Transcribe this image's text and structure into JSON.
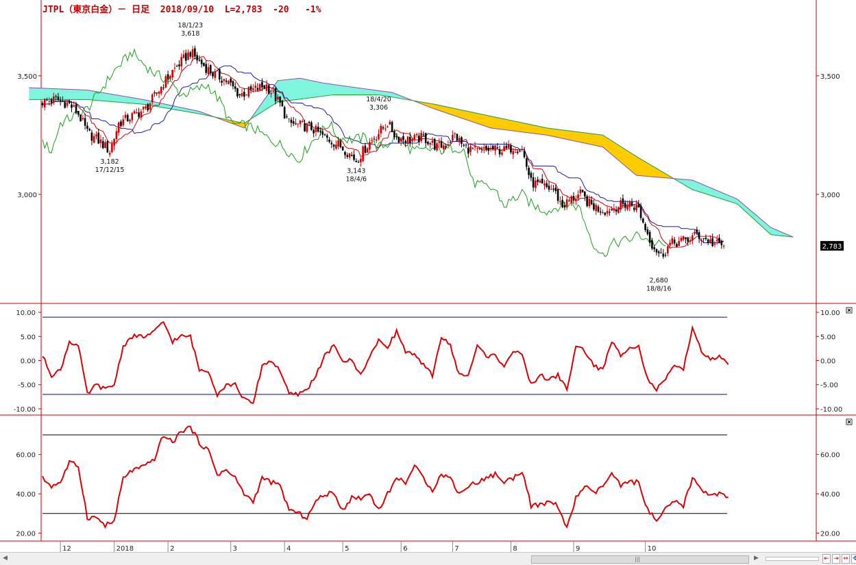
{
  "header": {
    "title": "JTPL（東京白金）－ 日足  2018/09/10  L=2,783  -20   -1%"
  },
  "colors": {
    "frame": "#c00000",
    "up_candle": "#d40000",
    "down_candle": "#000000",
    "tenkan": "#d40000",
    "kijun": "#1a1aa0",
    "chikou": "#18a018",
    "kumo_bull": "#7ff5dd",
    "kumo_bear": "#ffcc00",
    "osc_line": "#dd0000",
    "osc_band_upper": "#0000aa",
    "osc_band_lower": "#0000aa",
    "rsi_band": "#000000"
  },
  "chart_data": [
    {
      "type": "candlestick",
      "panel": "price",
      "ylim": [
        2540,
        3820
      ],
      "y_ticks": [
        "3,500",
        "3,000"
      ],
      "y_tick_values": [
        3500,
        3000
      ],
      "series_names": [
        "tenkan",
        "kijun",
        "senkou_a",
        "senkou_b",
        "chikou"
      ],
      "keypoints_close": [
        [
          0,
          3390
        ],
        [
          6,
          3400
        ],
        [
          12,
          3380
        ],
        [
          16,
          3340
        ],
        [
          20,
          3260
        ],
        [
          26,
          3220
        ],
        [
          30,
          3182
        ],
        [
          34,
          3300
        ],
        [
          40,
          3330
        ],
        [
          46,
          3360
        ],
        [
          52,
          3440
        ],
        [
          58,
          3520
        ],
        [
          62,
          3560
        ],
        [
          66,
          3600
        ],
        [
          70,
          3560
        ],
        [
          76,
          3510
        ],
        [
          82,
          3480
        ],
        [
          88,
          3420
        ],
        [
          94,
          3440
        ],
        [
          100,
          3460
        ],
        [
          106,
          3380
        ],
        [
          110,
          3300
        ],
        [
          116,
          3290
        ],
        [
          120,
          3280
        ],
        [
          126,
          3240
        ],
        [
          132,
          3210
        ],
        [
          136,
          3180
        ],
        [
          140,
          3143
        ],
        [
          146,
          3220
        ],
        [
          150,
          3260
        ],
        [
          154,
          3300
        ],
        [
          158,
          3240
        ],
        [
          164,
          3230
        ],
        [
          170,
          3240
        ],
        [
          176,
          3200
        ],
        [
          180,
          3210
        ],
        [
          184,
          3250
        ],
        [
          188,
          3200
        ],
        [
          194,
          3180
        ],
        [
          200,
          3190
        ],
        [
          206,
          3185
        ],
        [
          210,
          3200
        ],
        [
          214,
          3190
        ],
        [
          218,
          3050
        ],
        [
          224,
          3030
        ],
        [
          228,
          3020
        ],
        [
          232,
          2950
        ],
        [
          236,
          2980
        ],
        [
          240,
          3000
        ],
        [
          244,
          2960
        ],
        [
          248,
          2940
        ],
        [
          252,
          2930
        ],
        [
          256,
          2950
        ],
        [
          262,
          2960
        ],
        [
          266,
          2940
        ],
        [
          268,
          2880
        ],
        [
          272,
          2790
        ],
        [
          276,
          2740
        ],
        [
          280,
          2790
        ],
        [
          284,
          2800
        ],
        [
          288,
          2810
        ],
        [
          292,
          2830
        ],
        [
          296,
          2810
        ],
        [
          300,
          2790
        ],
        [
          304,
          2783
        ]
      ],
      "kumo_a_points": [
        [
          -6,
          3450
        ],
        [
          20,
          3440
        ],
        [
          45,
          3400
        ],
        [
          70,
          3350
        ],
        [
          90,
          3280
        ],
        [
          105,
          3480
        ],
        [
          115,
          3490
        ],
        [
          125,
          3470
        ],
        [
          140,
          3450
        ],
        [
          156,
          3430
        ],
        [
          175,
          3360
        ],
        [
          200,
          3280
        ],
        [
          225,
          3250
        ],
        [
          250,
          3200
        ],
        [
          265,
          3080
        ],
        [
          290,
          3060
        ],
        [
          310,
          2980
        ],
        [
          325,
          2860
        ],
        [
          335,
          2820
        ]
      ],
      "kumo_b_points": [
        [
          -6,
          3400
        ],
        [
          20,
          3400
        ],
        [
          45,
          3380
        ],
        [
          70,
          3340
        ],
        [
          90,
          3300
        ],
        [
          105,
          3390
        ],
        [
          130,
          3420
        ],
        [
          150,
          3420
        ],
        [
          175,
          3380
        ],
        [
          200,
          3330
        ],
        [
          225,
          3280
        ],
        [
          250,
          3250
        ],
        [
          265,
          3160
        ],
        [
          290,
          3020
        ],
        [
          310,
          2960
        ],
        [
          325,
          2830
        ],
        [
          335,
          2820
        ]
      ],
      "annotations": [
        {
          "label_top": "18/1/23",
          "label_bottom": "3,618",
          "x": 66,
          "y": 3618,
          "pos": "above"
        },
        {
          "label_top": "3,182",
          "label_bottom": "17/12/15",
          "x": 30,
          "y": 3182,
          "pos": "below"
        },
        {
          "label_top": "3,143",
          "label_bottom": "18/4/6",
          "x": 140,
          "y": 3143,
          "pos": "below"
        },
        {
          "label_top": "18/4/20",
          "label_bottom": "3,306",
          "x": 150,
          "y": 3306,
          "pos": "above"
        },
        {
          "label_top": "2,680",
          "label_bottom": "18/8/16",
          "x": 275,
          "y": 2680,
          "pos": "below"
        }
      ],
      "last_value_label": "2,783",
      "last_value": 2783
    },
    {
      "type": "line",
      "panel": "oscillator",
      "ylim": [
        -11,
        11
      ],
      "y_ticks": [
        "10.00",
        "5.00",
        "0.00",
        "-5.00",
        "-10.00"
      ],
      "y_tick_values": [
        10,
        5,
        0,
        -5,
        -10
      ],
      "upper_band": 9,
      "lower_band": -7,
      "keypoints": [
        [
          0,
          1
        ],
        [
          4,
          -3
        ],
        [
          8,
          -2
        ],
        [
          12,
          4
        ],
        [
          16,
          3
        ],
        [
          20,
          -7
        ],
        [
          24,
          -5
        ],
        [
          28,
          -6
        ],
        [
          32,
          -5
        ],
        [
          36,
          3
        ],
        [
          40,
          5
        ],
        [
          46,
          5
        ],
        [
          50,
          6
        ],
        [
          54,
          8
        ],
        [
          58,
          4
        ],
        [
          62,
          5
        ],
        [
          66,
          5
        ],
        [
          70,
          -2
        ],
        [
          74,
          -2
        ],
        [
          78,
          -7
        ],
        [
          82,
          -5
        ],
        [
          86,
          -5
        ],
        [
          90,
          -8
        ],
        [
          94,
          -9
        ],
        [
          98,
          -1
        ],
        [
          102,
          0
        ],
        [
          106,
          -2
        ],
        [
          110,
          -7
        ],
        [
          114,
          -7
        ],
        [
          118,
          -6
        ],
        [
          122,
          -3
        ],
        [
          126,
          1
        ],
        [
          130,
          3
        ],
        [
          134,
          0
        ],
        [
          138,
          0
        ],
        [
          142,
          -3
        ],
        [
          146,
          1
        ],
        [
          150,
          4
        ],
        [
          154,
          3
        ],
        [
          158,
          6
        ],
        [
          162,
          2
        ],
        [
          166,
          1
        ],
        [
          170,
          -1
        ],
        [
          174,
          -3
        ],
        [
          178,
          5
        ],
        [
          182,
          3
        ],
        [
          186,
          -3
        ],
        [
          190,
          -3
        ],
        [
          194,
          3
        ],
        [
          198,
          1
        ],
        [
          202,
          1
        ],
        [
          206,
          -1
        ],
        [
          210,
          2
        ],
        [
          214,
          1
        ],
        [
          218,
          -5
        ],
        [
          222,
          -3
        ],
        [
          226,
          -4
        ],
        [
          230,
          -3
        ],
        [
          234,
          -6
        ],
        [
          238,
          3
        ],
        [
          242,
          2
        ],
        [
          246,
          -1
        ],
        [
          250,
          -2
        ],
        [
          254,
          4
        ],
        [
          258,
          1
        ],
        [
          262,
          3
        ],
        [
          266,
          3
        ],
        [
          270,
          -4
        ],
        [
          274,
          -6
        ],
        [
          278,
          -4
        ],
        [
          282,
          -1
        ],
        [
          286,
          -2
        ],
        [
          290,
          7
        ],
        [
          294,
          2
        ],
        [
          298,
          0
        ],
        [
          302,
          1
        ],
        [
          306,
          -1
        ]
      ]
    },
    {
      "type": "line",
      "panel": "rsi",
      "ylim": [
        16,
        78
      ],
      "y_ticks": [
        "60.00",
        "40.00",
        "20.00"
      ],
      "y_tick_values": [
        60,
        40,
        20
      ],
      "upper_band": 70,
      "lower_band": 30,
      "keypoints": [
        [
          0,
          48
        ],
        [
          4,
          44
        ],
        [
          8,
          46
        ],
        [
          12,
          56
        ],
        [
          16,
          54
        ],
        [
          20,
          28
        ],
        [
          24,
          28
        ],
        [
          28,
          24
        ],
        [
          32,
          26
        ],
        [
          36,
          48
        ],
        [
          40,
          52
        ],
        [
          46,
          54
        ],
        [
          50,
          58
        ],
        [
          54,
          70
        ],
        [
          58,
          66
        ],
        [
          62,
          72
        ],
        [
          66,
          74
        ],
        [
          70,
          66
        ],
        [
          74,
          62
        ],
        [
          78,
          50
        ],
        [
          82,
          52
        ],
        [
          86,
          48
        ],
        [
          90,
          40
        ],
        [
          94,
          36
        ],
        [
          98,
          48
        ],
        [
          102,
          46
        ],
        [
          106,
          44
        ],
        [
          110,
          32
        ],
        [
          114,
          30
        ],
        [
          118,
          28
        ],
        [
          122,
          36
        ],
        [
          126,
          40
        ],
        [
          130,
          40
        ],
        [
          134,
          32
        ],
        [
          138,
          38
        ],
        [
          142,
          38
        ],
        [
          146,
          40
        ],
        [
          150,
          32
        ],
        [
          154,
          40
        ],
        [
          158,
          48
        ],
        [
          162,
          46
        ],
        [
          166,
          54
        ],
        [
          170,
          48
        ],
        [
          174,
          42
        ],
        [
          178,
          50
        ],
        [
          182,
          48
        ],
        [
          186,
          40
        ],
        [
          190,
          44
        ],
        [
          194,
          46
        ],
        [
          198,
          48
        ],
        [
          202,
          50
        ],
        [
          206,
          46
        ],
        [
          210,
          48
        ],
        [
          214,
          52
        ],
        [
          218,
          34
        ],
        [
          222,
          34
        ],
        [
          226,
          36
        ],
        [
          230,
          34
        ],
        [
          234,
          22
        ],
        [
          238,
          38
        ],
        [
          242,
          44
        ],
        [
          246,
          40
        ],
        [
          250,
          44
        ],
        [
          254,
          50
        ],
        [
          258,
          44
        ],
        [
          262,
          46
        ],
        [
          266,
          46
        ],
        [
          270,
          32
        ],
        [
          274,
          26
        ],
        [
          278,
          32
        ],
        [
          282,
          36
        ],
        [
          286,
          34
        ],
        [
          290,
          48
        ],
        [
          294,
          42
        ],
        [
          298,
          40
        ],
        [
          302,
          40
        ],
        [
          306,
          38
        ]
      ]
    }
  ],
  "x_axis": {
    "labels": [
      {
        "text": "12",
        "x": 8
      },
      {
        "text": "2018",
        "x": 32
      },
      {
        "text": "2",
        "x": 56
      },
      {
        "text": "3",
        "x": 84
      },
      {
        "text": "4",
        "x": 108
      },
      {
        "text": "5",
        "x": 134
      },
      {
        "text": "6",
        "x": 160
      },
      {
        "text": "7",
        "x": 183
      },
      {
        "text": "8",
        "x": 209
      },
      {
        "text": "9",
        "x": 237
      },
      {
        "text": "10",
        "x": 269
      }
    ]
  }
}
